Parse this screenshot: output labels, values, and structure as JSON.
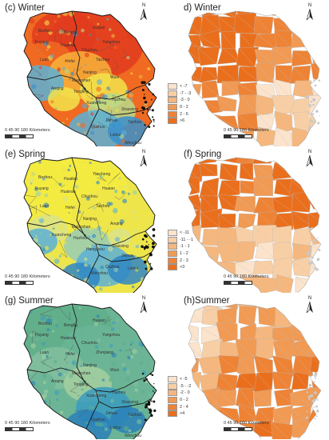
{
  "panels": [
    {
      "title": "(c) Winter",
      "type": "surface",
      "palette": [
        "#e23b1f",
        "#f06a22",
        "#f7b13a",
        "#f2e34a",
        "#b9d98b",
        "#5cb0d6",
        "#3a8fcb"
      ],
      "cities": [
        "Bozhou",
        "Bengbu",
        "Suqian",
        "Fuyang",
        "Huainan",
        "Chuzhou",
        "Yangzhou",
        "Luan",
        "Hefei",
        "Taizhou",
        "Nanjing",
        "Maanshan",
        "Wuxi",
        "Anqing",
        "Tongling",
        "Xuancheng",
        "Huzhou",
        "Shaoxing",
        "Jinhua",
        "Taizhou",
        "Quzhou",
        "Lishui",
        "Wenzhou"
      ],
      "scale_label": "0  45 90        180 Kilometers",
      "north": "N",
      "legend": []
    },
    {
      "title": "d) Winter",
      "type": "choropleth",
      "palette": [
        "#fbe3cc",
        "#f8cfa5",
        "#f5b77d",
        "#f19a54",
        "#ee8335",
        "#ea6f1d"
      ],
      "scale_label": "0  45 90        180 Kilometers",
      "north": "N",
      "legend": [
        "< -7",
        "-7 - -3",
        "-3 - 0",
        "0 - 2",
        "2 - 6",
        ">6"
      ]
    },
    {
      "title": "(e) Spring",
      "type": "surface",
      "palette": [
        "#f4ec3f",
        "#ede54a",
        "#d9e38a",
        "#98cdb5",
        "#5cb0d6",
        "#2f86c4"
      ],
      "cities": [
        "Bozhou",
        "Huaibei",
        "Yancheng",
        "Fuyang",
        "Huainan",
        "Chuzhou",
        "Huaian",
        "Luan",
        "Hefei",
        "Taizhou",
        "Nanjing",
        "Maanshan",
        "Anqing",
        "Xuancheng",
        "Huzhou",
        "Hangzhou",
        "Shaoxing",
        "Jinhua",
        "Quzhou",
        "Lishui",
        "Wenzhou"
      ],
      "scale_label": "0  45 90        180 Kilometers",
      "north": "N",
      "legend": []
    },
    {
      "title": "(f) Spring",
      "type": "choropleth",
      "palette": [
        "#fbe3cc",
        "#f8cfa5",
        "#f5b77d",
        "#f19a54",
        "#ee8335",
        "#ea6f1d"
      ],
      "scale_label": "0  45 90        180 Kilometers",
      "north": "N",
      "legend": [
        "< -11",
        "-11 - -1",
        "-1 - 1",
        "1 - 2",
        "2 - 3",
        ">3"
      ]
    },
    {
      "title": "(g) Summer",
      "type": "surface",
      "palette": [
        "#5fae8a",
        "#6bb596",
        "#82c09e",
        "#a4cfa0",
        "#3a9bc0",
        "#2a80b9"
      ],
      "cities": [
        "Bozhou",
        "Bengbu",
        "Huaian",
        "Fuyang",
        "Huainan",
        "Chuzhou",
        "Yangzhou",
        "Luan",
        "Hefei",
        "Zhenjiang",
        "Nanjing",
        "Maanshan",
        "Wuxi",
        "Anqing",
        "Tongling",
        "Xuancheng",
        "Huzhou",
        "Shaoxing",
        "Jinhua",
        "Taizhou",
        "Quzhou",
        "Lishui",
        "Wenzhou"
      ],
      "scale_label": "0  45 90        180 Kilometers",
      "north": "N",
      "legend": []
    },
    {
      "title": "(h)Summer",
      "type": "choropleth",
      "palette": [
        "#fbe3cc",
        "#f8cfa5",
        "#f5b77d",
        "#f19a54",
        "#ee8335",
        "#ea6f1d"
      ],
      "scale_label": "0  45 90        180 Kilometers",
      "north": "N",
      "legend": [
        "< -5",
        "-5 - -2",
        "-2 - 0",
        "0 - 2",
        "2 - 4",
        ">4"
      ]
    }
  ]
}
